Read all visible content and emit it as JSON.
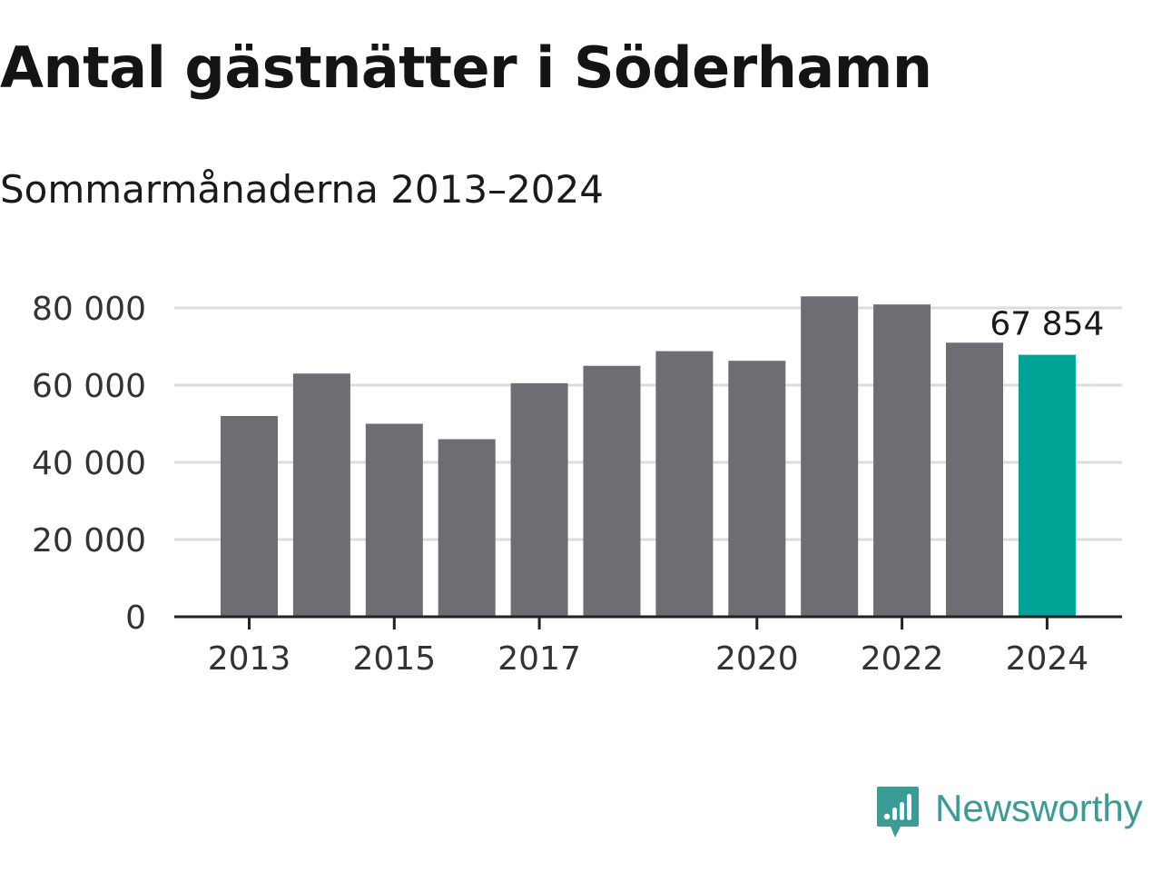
{
  "header": {
    "title": "Antal gästnätter i Söderhamn",
    "subtitle": "Sommarmånaderna 2013–2024"
  },
  "brand": {
    "name": "Newsworthy",
    "icon": "bar-chart-speech-bubble-icon",
    "color": "#3a9c94"
  },
  "chart_data": {
    "type": "bar",
    "title": "Antal gästnätter i Söderhamn",
    "subtitle": "Sommarmånaderna 2013–2024",
    "xlabel": "",
    "ylabel": "",
    "categories": [
      "2013",
      "2014",
      "2015",
      "2016",
      "2017",
      "2018",
      "2019",
      "2020",
      "2021",
      "2022",
      "2023",
      "2024"
    ],
    "values": [
      52000,
      63000,
      50000,
      46000,
      60500,
      65000,
      68800,
      66300,
      83000,
      80900,
      71000,
      67854
    ],
    "ylim": [
      0,
      85000
    ],
    "yticks": [
      0,
      20000,
      40000,
      60000,
      80000
    ],
    "ytick_labels": [
      "0",
      "20 000",
      "40 000",
      "60 000",
      "80 000"
    ],
    "xtick_labels": [
      "2013",
      "2015",
      "2017",
      "2020",
      "2022",
      "2024"
    ],
    "highlight_index": 11,
    "highlight_label": "67 854",
    "grid": true,
    "colors": {
      "bar": "#6e6d73",
      "highlight": "#00a396",
      "grid": "#dcdcdc",
      "axis": "#222222",
      "text": "#333333"
    }
  }
}
